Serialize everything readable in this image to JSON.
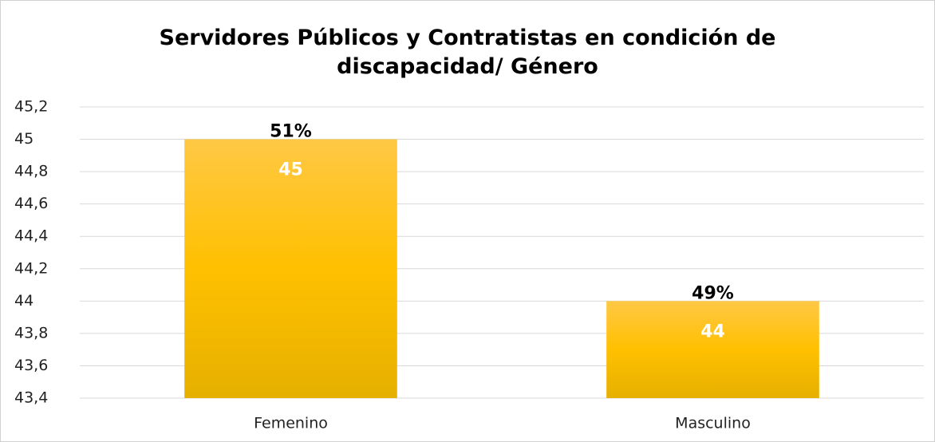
{
  "chart_data": {
    "type": "bar",
    "title": "Servidores Públicos y Contratistas en condición de discapacidad/ Género",
    "categories": [
      "Femenino",
      "Masculino"
    ],
    "values": [
      45,
      44
    ],
    "share_labels": [
      "51%",
      "49%"
    ],
    "color": "#ffc000",
    "ylim": [
      43.4,
      45.2
    ],
    "yticks": [
      {
        "value": 43.4,
        "label": "43,4"
      },
      {
        "value": 43.6,
        "label": "43,6"
      },
      {
        "value": 43.8,
        "label": "43,8"
      },
      44,
      {
        "value": 44.2,
        "label": "44,2"
      },
      {
        "value": 44.4,
        "label": "44,4"
      },
      {
        "value": 44.6,
        "label": "44,6"
      },
      {
        "value": 44.8,
        "label": "44,8"
      },
      45,
      {
        "value": 45.2,
        "label": "45,2"
      }
    ],
    "grid": true
  }
}
